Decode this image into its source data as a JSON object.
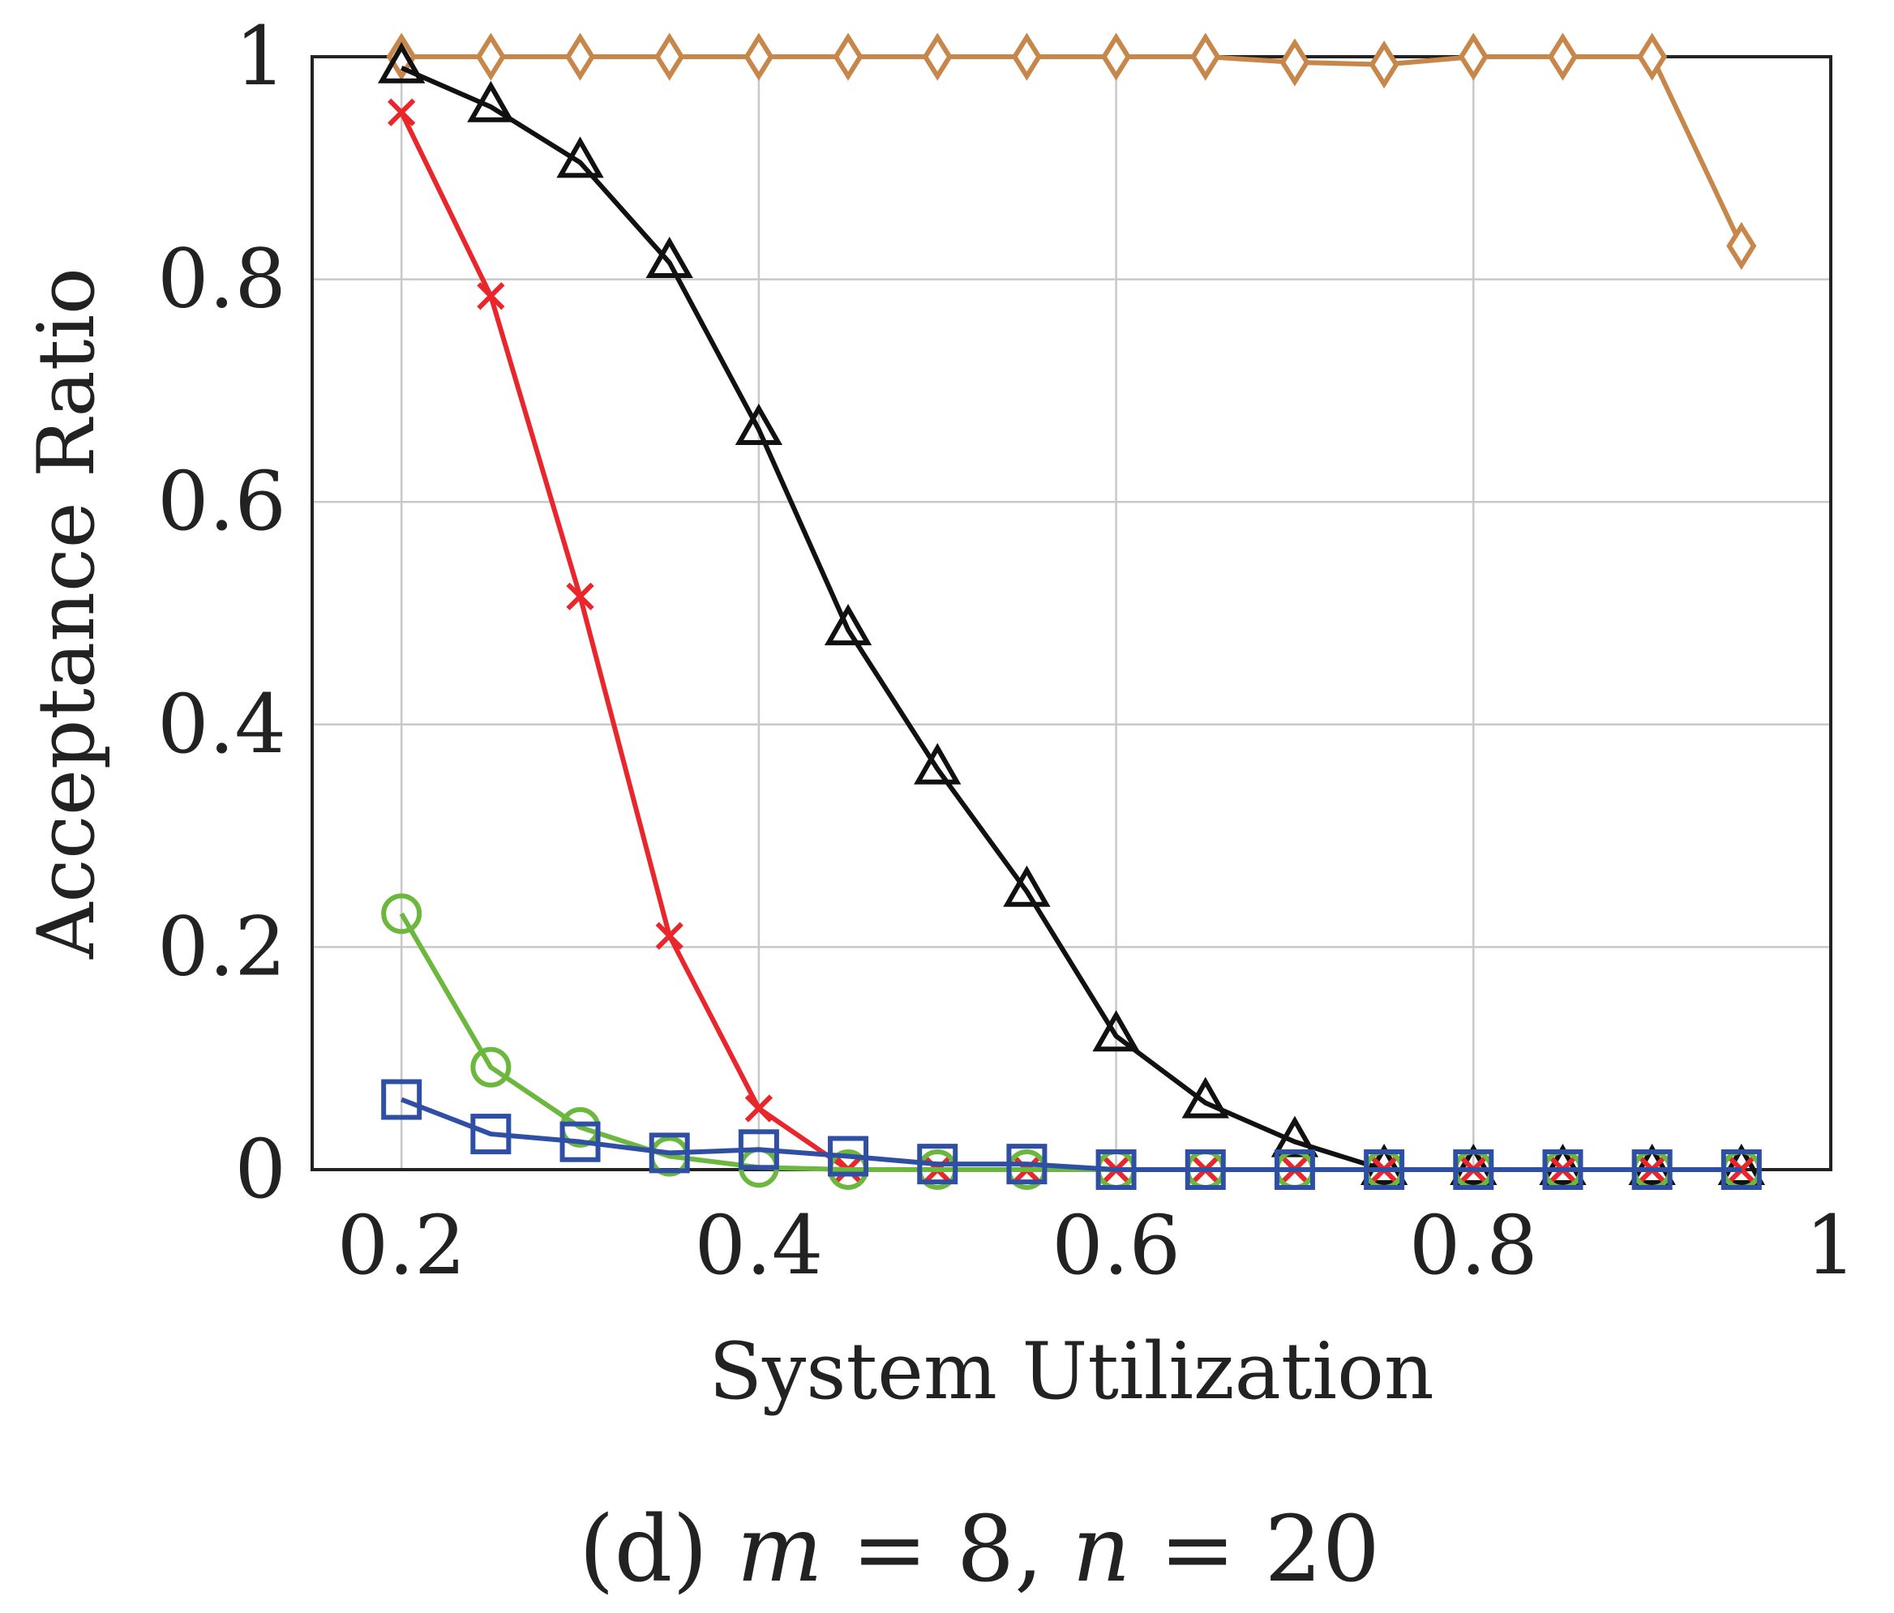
{
  "chart_data": {
    "type": "line",
    "caption": {
      "prefix": "(d) ",
      "var1": "m",
      "eq1": " = 8, ",
      "var2": "n",
      "eq2": " = 20"
    },
    "xlabel": "System Utilization",
    "ylabel": "Acceptance Ratio",
    "xlim": [
      0.15,
      1.0
    ],
    "ylim": [
      0,
      1
    ],
    "xticks": [
      0.2,
      0.4,
      0.6,
      0.8,
      1
    ],
    "xtick_labels": [
      "0.2",
      "0.4",
      "0.6",
      "0.8",
      "1"
    ],
    "yticks": [
      0,
      0.2,
      0.4,
      0.6,
      0.8,
      1
    ],
    "ytick_labels": [
      "0",
      "0.2",
      "0.4",
      "0.6",
      "0.8",
      "1"
    ],
    "grid": true,
    "x": [
      0.2,
      0.25,
      0.3,
      0.35,
      0.4,
      0.45,
      0.5,
      0.55,
      0.6,
      0.65,
      0.7,
      0.75,
      0.8,
      0.85,
      0.9,
      0.95
    ],
    "series": [
      {
        "marker": "diamond",
        "color": "#C8874A",
        "values": [
          1,
          1,
          1,
          1,
          1,
          1,
          1,
          1,
          1,
          1,
          0.995,
          0.993,
          1,
          1,
          1,
          0.83
        ]
      },
      {
        "marker": "triangle",
        "color": "#111111",
        "values": [
          0.99,
          0.955,
          0.905,
          0.815,
          0.665,
          0.485,
          0.36,
          0.25,
          0.12,
          0.06,
          0.025,
          0,
          0,
          0,
          0,
          0
        ]
      },
      {
        "marker": "cross",
        "color": "#E8262B",
        "values": [
          0.95,
          0.785,
          0.515,
          0.21,
          0.055,
          0,
          0,
          0,
          0,
          0,
          0,
          0,
          0,
          0,
          0,
          0
        ]
      },
      {
        "marker": "circle",
        "color": "#6CB83E",
        "values": [
          0.23,
          0.092,
          0.038,
          0.012,
          0.002,
          0,
          0,
          0,
          0,
          0,
          0,
          0,
          0,
          0,
          0,
          0
        ]
      },
      {
        "marker": "square",
        "color": "#2E4FA3",
        "values": [
          0.063,
          0.032,
          0.025,
          0.015,
          0.018,
          0.012,
          0.005,
          0.005,
          0,
          0,
          0,
          0,
          0,
          0,
          0,
          0
        ]
      }
    ]
  }
}
